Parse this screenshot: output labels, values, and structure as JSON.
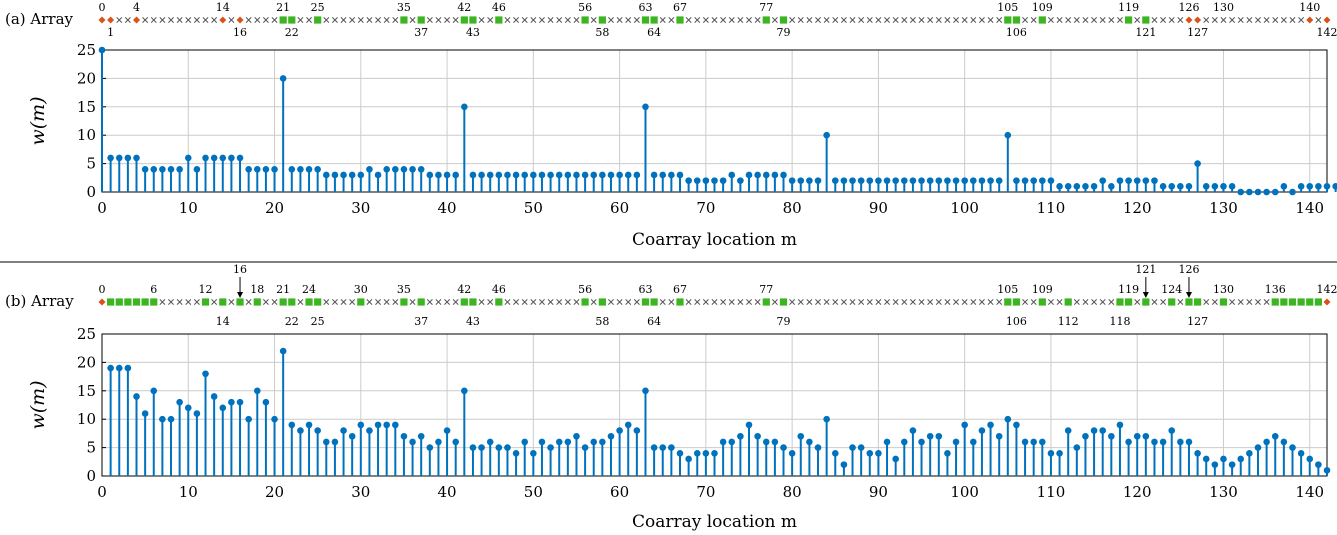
{
  "figure": {
    "separator_color": "#000000"
  },
  "colors": {
    "stem": "#0072BD",
    "sensor_marker": "#D95319",
    "array_marker": "#3CB520",
    "empty_marker": "#555555",
    "grid": "#cccccc"
  },
  "chart_data": [
    {
      "type": "stem",
      "panel_label": "(a) Array",
      "xlabel": "Coarray location m",
      "ylabel": "w(m)",
      "xlim": [
        0,
        142
      ],
      "ylim": [
        0,
        25
      ],
      "xticks": [
        "0",
        "10",
        "20",
        "30",
        "40",
        "50",
        "60",
        "70",
        "80",
        "90",
        "100",
        "110",
        "120",
        "130",
        "140"
      ],
      "yticks": [
        "0",
        "5",
        "10",
        "15",
        "20",
        "25"
      ],
      "grid": true,
      "x_start": 0,
      "values": [
        25,
        6,
        6,
        6,
        6,
        4,
        4,
        4,
        4,
        4,
        6,
        4,
        6,
        6,
        6,
        6,
        6,
        4,
        4,
        4,
        4,
        20,
        4,
        4,
        4,
        4,
        3,
        3,
        3,
        3,
        3,
        4,
        3,
        4,
        4,
        4,
        4,
        4,
        3,
        3,
        3,
        3,
        15,
        3,
        3,
        3,
        3,
        3,
        3,
        3,
        3,
        3,
        3,
        3,
        3,
        3,
        3,
        3,
        3,
        3,
        3,
        3,
        3,
        15,
        3,
        3,
        3,
        3,
        2,
        2,
        2,
        2,
        2,
        3,
        2,
        3,
        3,
        3,
        3,
        3,
        2,
        2,
        2,
        2,
        10,
        2,
        2,
        2,
        2,
        2,
        2,
        2,
        2,
        2,
        2,
        2,
        2,
        2,
        2,
        2,
        2,
        2,
        2,
        2,
        2,
        10,
        2,
        2,
        2,
        2,
        2,
        1,
        1,
        1,
        1,
        1,
        2,
        1,
        2,
        2,
        2,
        2,
        2,
        1,
        1,
        1,
        1,
        5,
        1,
        1,
        1,
        1,
        0,
        0,
        0,
        0,
        0,
        1,
        0,
        1,
        1,
        1,
        1,
        1
      ],
      "array": {
        "sensors": [
          0,
          1,
          4,
          14,
          16,
          126,
          127,
          140,
          142
        ],
        "green": [
          21,
          22,
          25,
          35,
          37,
          42,
          43,
          46,
          56,
          58,
          63,
          64,
          67,
          77,
          79,
          105,
          106,
          109,
          119,
          121
        ],
        "top_labels": [
          {
            "text": "0",
            "x": 0
          },
          {
            "text": "4",
            "x": 4
          },
          {
            "text": "14",
            "x": 14
          },
          {
            "text": "21",
            "x": 21
          },
          {
            "text": "25",
            "x": 25
          },
          {
            "text": "35",
            "x": 35
          },
          {
            "text": "42",
            "x": 42
          },
          {
            "text": "46",
            "x": 46
          },
          {
            "text": "56",
            "x": 56
          },
          {
            "text": "63",
            "x": 63
          },
          {
            "text": "67",
            "x": 67
          },
          {
            "text": "77",
            "x": 77
          },
          {
            "text": "105",
            "x": 105
          },
          {
            "text": "109",
            "x": 109
          },
          {
            "text": "119",
            "x": 119
          },
          {
            "text": "126",
            "x": 126
          },
          {
            "text": "130",
            "x": 130
          },
          {
            "text": "140",
            "x": 140
          }
        ],
        "bottom_labels": [
          {
            "text": "1",
            "x": 1
          },
          {
            "text": "16",
            "x": 16
          },
          {
            "text": "22",
            "x": 22
          },
          {
            "text": "37",
            "x": 37
          },
          {
            "text": "43",
            "x": 43
          },
          {
            "text": "58",
            "x": 58
          },
          {
            "text": "64",
            "x": 64
          },
          {
            "text": "79",
            "x": 79
          },
          {
            "text": "106",
            "x": 106
          },
          {
            "text": "121",
            "x": 121
          },
          {
            "text": "127",
            "x": 127
          },
          {
            "text": "142",
            "x": 142
          }
        ],
        "arrow_labels": []
      }
    },
    {
      "type": "stem",
      "panel_label": "(b) Array",
      "xlabel": "Coarray location m",
      "ylabel": "w(m)",
      "xlim": [
        0,
        142
      ],
      "ylim": [
        0,
        25
      ],
      "xticks": [
        "0",
        "10",
        "20",
        "30",
        "40",
        "50",
        "60",
        "70",
        "80",
        "90",
        "100",
        "110",
        "120",
        "130",
        "140"
      ],
      "yticks": [
        "0",
        "5",
        "10",
        "15",
        "20",
        "25"
      ],
      "grid": true,
      "x_start": 1,
      "values": [
        19,
        19,
        19,
        14,
        11,
        15,
        10,
        10,
        13,
        12,
        11,
        18,
        14,
        12,
        13,
        13,
        10,
        15,
        13,
        10,
        22,
        9,
        8,
        9,
        8,
        6,
        6,
        8,
        7,
        9,
        8,
        9,
        9,
        9,
        7,
        6,
        7,
        5,
        6,
        8,
        6,
        15,
        5,
        5,
        6,
        5,
        5,
        4,
        6,
        4,
        6,
        5,
        6,
        6,
        7,
        5,
        6,
        6,
        7,
        8,
        9,
        8,
        15,
        5,
        5,
        5,
        4,
        3,
        4,
        4,
        4,
        6,
        6,
        7,
        9,
        7,
        6,
        6,
        5,
        4,
        7,
        6,
        5,
        10,
        4,
        2,
        5,
        5,
        4,
        4,
        6,
        3,
        6,
        8,
        6,
        7,
        7,
        4,
        6,
        9,
        6,
        8,
        9,
        7,
        10,
        9,
        6,
        6,
        6,
        4,
        4,
        8,
        5,
        7,
        8,
        8,
        7,
        9,
        6,
        7,
        7,
        6,
        6,
        8,
        6,
        6,
        4,
        3,
        2,
        3,
        2,
        3,
        4,
        5,
        6,
        7,
        6,
        5,
        4,
        3,
        2,
        1
      ],
      "array": {
        "sensors": [
          0,
          142
        ],
        "green": [
          1,
          2,
          3,
          4,
          5,
          6,
          12,
          14,
          16,
          18,
          21,
          22,
          24,
          25,
          30,
          35,
          37,
          42,
          43,
          46,
          56,
          58,
          63,
          64,
          67,
          77,
          79,
          105,
          106,
          109,
          112,
          118,
          119,
          121,
          124,
          126,
          127,
          130,
          136,
          137,
          138,
          139,
          140,
          141
        ],
        "top_labels": [
          {
            "text": "0",
            "x": 0
          },
          {
            "text": "6",
            "x": 6
          },
          {
            "text": "12",
            "x": 12
          },
          {
            "text": "18",
            "x": 18
          },
          {
            "text": "21",
            "x": 21
          },
          {
            "text": "24",
            "x": 24
          },
          {
            "text": "30",
            "x": 30
          },
          {
            "text": "35",
            "x": 35
          },
          {
            "text": "42",
            "x": 42
          },
          {
            "text": "46",
            "x": 46
          },
          {
            "text": "56",
            "x": 56
          },
          {
            "text": "63",
            "x": 63
          },
          {
            "text": "67",
            "x": 67
          },
          {
            "text": "77",
            "x": 77
          },
          {
            "text": "105",
            "x": 105
          },
          {
            "text": "109",
            "x": 109
          },
          {
            "text": "119",
            "x": 119
          },
          {
            "text": "124",
            "x": 124
          },
          {
            "text": "130",
            "x": 130
          },
          {
            "text": "136",
            "x": 136
          },
          {
            "text": "142",
            "x": 142
          }
        ],
        "bottom_labels": [
          {
            "text": "14",
            "x": 14
          },
          {
            "text": "22",
            "x": 22
          },
          {
            "text": "25",
            "x": 25
          },
          {
            "text": "37",
            "x": 37
          },
          {
            "text": "43",
            "x": 43
          },
          {
            "text": "58",
            "x": 58
          },
          {
            "text": "64",
            "x": 64
          },
          {
            "text": "79",
            "x": 79
          },
          {
            "text": "106",
            "x": 106
          },
          {
            "text": "112",
            "x": 112
          },
          {
            "text": "118",
            "x": 118
          },
          {
            "text": "127",
            "x": 127
          }
        ],
        "arrow_labels": [
          {
            "text": "16",
            "x": 16
          },
          {
            "text": "121",
            "x": 121
          },
          {
            "text": "126",
            "x": 126
          }
        ]
      }
    }
  ]
}
